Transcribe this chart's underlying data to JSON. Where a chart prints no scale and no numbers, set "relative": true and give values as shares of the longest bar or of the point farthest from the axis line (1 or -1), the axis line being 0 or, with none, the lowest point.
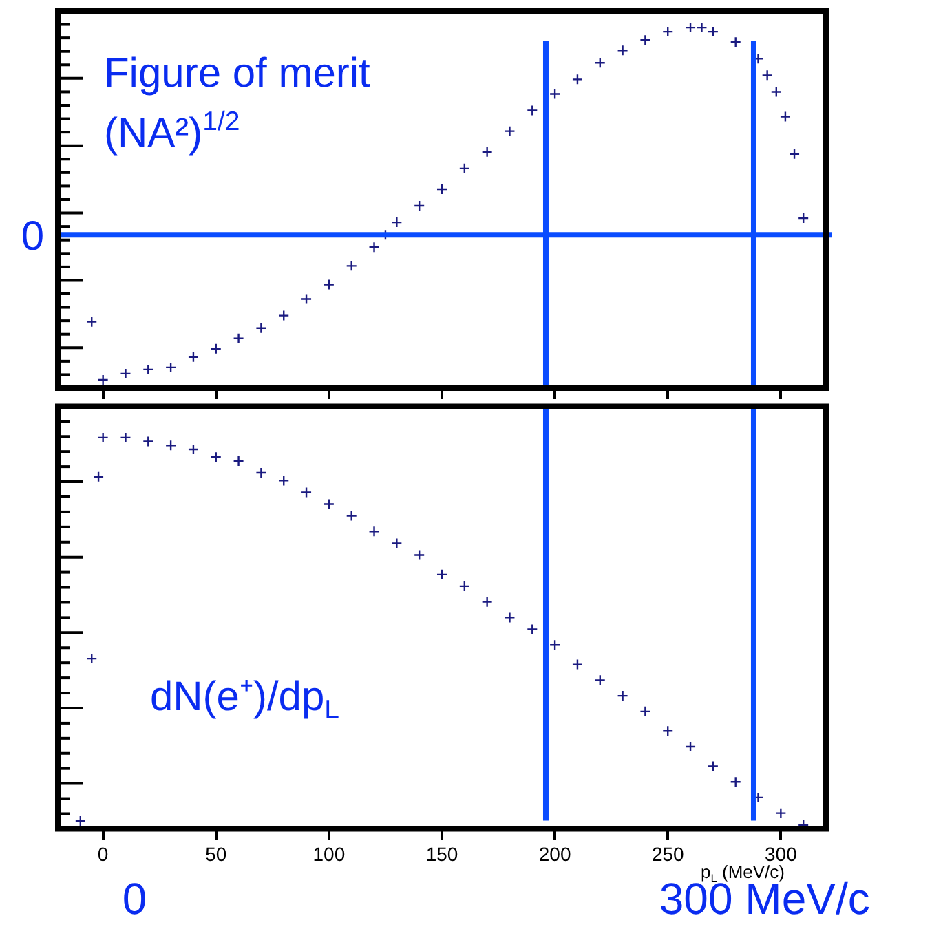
{
  "chart_data": [
    {
      "type": "scatter",
      "x": [
        -5,
        0,
        10,
        20,
        30,
        40,
        50,
        60,
        70,
        80,
        90,
        100,
        110,
        120,
        125,
        130,
        140,
        150,
        160,
        170,
        180,
        190,
        200,
        210,
        220,
        230,
        240,
        250,
        260,
        265,
        270,
        280,
        290,
        294,
        298,
        302,
        306,
        310
      ],
      "values": [
        -0.42,
        -0.7,
        -0.67,
        -0.65,
        -0.64,
        -0.59,
        -0.55,
        -0.5,
        -0.45,
        -0.39,
        -0.31,
        -0.24,
        -0.15,
        -0.06,
        0,
        0.06,
        0.14,
        0.22,
        0.32,
        0.4,
        0.5,
        0.6,
        0.68,
        0.75,
        0.83,
        0.89,
        0.94,
        0.98,
        1,
        1,
        0.98,
        0.93,
        0.85,
        0.77,
        0.69,
        0.57,
        0.39,
        0.08
      ],
      "color": "#1a1a80",
      "marker": "cross",
      "relative": true,
      "xlim": [
        -20,
        320
      ],
      "xticks": [
        0,
        50,
        100,
        150,
        200,
        250,
        300
      ],
      "tick_labels": false,
      "ref_lines": [
        {
          "axis": "y",
          "value": 0,
          "label": "0",
          "color": "#0a4cff"
        },
        {
          "axis": "x",
          "value": 196,
          "color": "#0a4cff"
        },
        {
          "axis": "x",
          "value": 288,
          "color": "#0a4cff"
        }
      ],
      "annotations": [
        "Figure of merit",
        "(NA²)$^{1/2}$"
      ]
    },
    {
      "type": "scatter",
      "x": [
        -10,
        -5,
        -2,
        0,
        10,
        20,
        30,
        40,
        50,
        60,
        70,
        80,
        90,
        100,
        110,
        120,
        130,
        140,
        150,
        160,
        170,
        180,
        190,
        200,
        210,
        220,
        230,
        240,
        250,
        260,
        270,
        280,
        290,
        300,
        310
      ],
      "values": [
        0.02,
        0.435,
        0.9,
        1,
        1,
        0.99,
        0.98,
        0.97,
        0.95,
        0.94,
        0.91,
        0.89,
        0.86,
        0.83,
        0.8,
        0.76,
        0.73,
        0.7,
        0.65,
        0.62,
        0.58,
        0.54,
        0.51,
        0.47,
        0.42,
        0.38,
        0.34,
        0.3,
        0.25,
        0.21,
        0.16,
        0.12,
        0.08,
        0.04,
        0.01
      ],
      "color": "#1a1a80",
      "marker": "cross",
      "relative": true,
      "xlim": [
        -20,
        320
      ],
      "xticks": [
        0,
        50,
        100,
        150,
        200,
        250,
        300
      ],
      "tick_labels": "x",
      "xlabel": "p$_{L}$ (MeV/c)",
      "ref_lines": [
        {
          "axis": "x",
          "value": 196,
          "color": "#0a4cff"
        },
        {
          "axis": "x",
          "value": 288,
          "color": "#0a4cff"
        }
      ],
      "annotations": [
        "dN(e⁺)/dp$_{L}$",
        "0",
        "300 MeV/c"
      ]
    }
  ]
}
